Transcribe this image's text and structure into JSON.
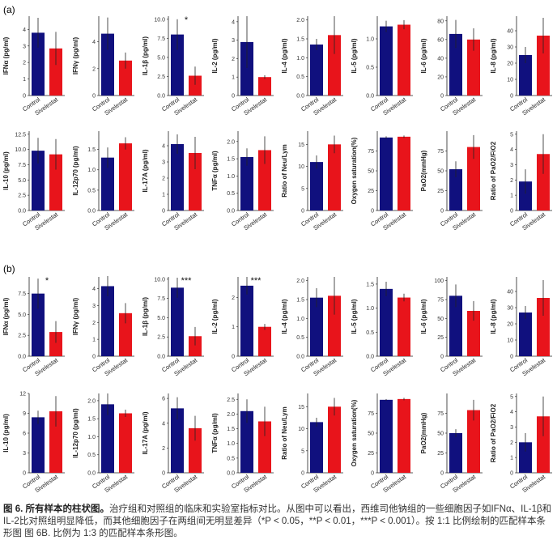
{
  "panel_labels": [
    "(a)",
    "(b)"
  ],
  "chart_data": [
    {
      "type": "bar",
      "ylabel": "IFNα (pg/ml)",
      "categories": [
        "Control",
        "Sivelestat"
      ],
      "values": [
        3.8,
        2.85
      ],
      "errors": [
        0.9,
        1.0
      ],
      "colors": [
        "#10107e",
        "#e8141b"
      ],
      "ylim": [
        0,
        4.8
      ],
      "yticks": [
        0,
        1,
        2,
        3,
        4
      ]
    },
    {
      "type": "bar",
      "ylabel": "IFNγ (pg/ml)",
      "categories": [
        "Control",
        "Sivelestat"
      ],
      "values": [
        4.6,
        2.6
      ],
      "errors": [
        1.2,
        0.6
      ],
      "colors": [
        "#10107e",
        "#e8141b"
      ],
      "ylim": [
        0,
        5.9
      ],
      "yticks": [
        0,
        2,
        4
      ]
    },
    {
      "type": "bar",
      "ylabel": "IL-1β (pg/ml)",
      "categories": [
        "Control",
        "Sivelestat"
      ],
      "values": [
        8.0,
        2.6
      ],
      "errors": [
        2.0,
        1.2
      ],
      "colors": [
        "#10107e",
        "#e8141b"
      ],
      "ylim": [
        0,
        10.4
      ],
      "yticks": [
        {
          "value": 0,
          "label": "0.0"
        },
        2.5,
        {
          "value": 5,
          "label": "5.0"
        },
        7.5,
        {
          "value": 10,
          "label": "10.0"
        }
      ],
      "annotation": "*"
    },
    {
      "type": "bar",
      "ylabel": "IL-2 (pg/ml)",
      "categories": [
        "Control",
        "Sivelestat"
      ],
      "values": [
        2.9,
        1.0
      ],
      "errors": [
        1.4,
        0.1
      ],
      "colors": [
        "#10107e",
        "#e8141b"
      ],
      "ylim": [
        0,
        4.3
      ],
      "yticks": [
        0,
        1,
        2,
        3,
        4
      ]
    },
    {
      "type": "bar",
      "ylabel": "IL-4 (pg/ml)",
      "categories": [
        "Control",
        "Sivelestat"
      ],
      "values": [
        1.35,
        1.6
      ],
      "errors": [
        0.15,
        0.5
      ],
      "colors": [
        "#10107e",
        "#e8141b"
      ],
      "ylim": [
        0,
        2.1
      ],
      "yticks": [
        {
          "value": 0,
          "label": "0.0"
        },
        0.5,
        {
          "value": 1,
          "label": "1.0"
        },
        1.5,
        {
          "value": 2,
          "label": "2.0"
        }
      ]
    },
    {
      "type": "bar",
      "ylabel": "IL-5 (pg/ml)",
      "categories": [
        "Control",
        "Sivelestat"
      ],
      "values": [
        1.22,
        1.25
      ],
      "errors": [
        0.1,
        0.08
      ],
      "colors": [
        "#10107e",
        "#e8141b"
      ],
      "ylim": [
        0,
        1.4
      ],
      "yticks": [
        {
          "value": 0,
          "label": "0.0"
        },
        0.5,
        {
          "value": 1,
          "label": "1.0"
        }
      ]
    },
    {
      "type": "bar",
      "ylabel": "IL-6 (pg/ml)",
      "categories": [
        "Control",
        "Sivelestat"
      ],
      "values": [
        66,
        60
      ],
      "errors": [
        15,
        12
      ],
      "colors": [
        "#10107e",
        "#e8141b"
      ],
      "ylim": [
        0,
        85
      ],
      "yticks": [
        0,
        20,
        40,
        60,
        80
      ]
    },
    {
      "type": "bar",
      "ylabel": "IL-8 (pg/ml)",
      "categories": [
        "Control",
        "Sivelestat"
      ],
      "values": [
        25,
        37
      ],
      "errors": [
        5,
        11
      ],
      "colors": [
        "#10107e",
        "#e8141b"
      ],
      "ylim": [
        0,
        49
      ],
      "yticks": [
        0,
        10,
        20,
        30,
        40
      ]
    },
    {
      "type": "bar",
      "ylabel": "IL-10 (pg/ml)",
      "categories": [
        "Control",
        "Sivelestat"
      ],
      "values": [
        9.8,
        9.2
      ],
      "errors": [
        2.1,
        2.5
      ],
      "colors": [
        "#10107e",
        "#e8141b"
      ],
      "ylim": [
        0,
        13
      ],
      "yticks": [
        {
          "value": 0,
          "label": "0.0"
        },
        2.5,
        {
          "value": 5,
          "label": "5.0"
        },
        7.5,
        {
          "value": 10,
          "label": "10.0"
        },
        12.5
      ]
    },
    {
      "type": "bar",
      "ylabel": "IL-12p70 (pg/ml)",
      "categories": [
        "Control",
        "Sivelestat"
      ],
      "values": [
        1.3,
        1.65
      ],
      "errors": [
        0.25,
        0.15
      ],
      "colors": [
        "#10107e",
        "#e8141b"
      ],
      "ylim": [
        0,
        1.95
      ],
      "yticks": [
        {
          "value": 0,
          "label": "0.0"
        },
        0.5,
        {
          "value": 1,
          "label": "1.0"
        },
        1.5
      ]
    },
    {
      "type": "bar",
      "ylabel": "IL-17A (pg/ml)",
      "categories": [
        "Control",
        "Sivelestat"
      ],
      "values": [
        4.1,
        3.55
      ],
      "errors": [
        0.6,
        1.0
      ],
      "colors": [
        "#10107e",
        "#e8141b"
      ],
      "ylim": [
        0,
        4.9
      ],
      "yticks": [
        0,
        1,
        2,
        3,
        4
      ]
    },
    {
      "type": "bar",
      "ylabel": "TNFα (pg/ml)",
      "categories": [
        "Control",
        "Sivelestat"
      ],
      "values": [
        1.55,
        1.75
      ],
      "errors": [
        0.25,
        0.4
      ],
      "colors": [
        "#10107e",
        "#e8141b"
      ],
      "ylim": [
        0,
        2.3
      ],
      "yticks": [
        {
          "value": 0,
          "label": "0.0"
        },
        0.5,
        {
          "value": 1,
          "label": "1.0"
        },
        1.5,
        {
          "value": 2,
          "label": "2.0"
        }
      ]
    },
    {
      "type": "bar",
      "ylabel": "Ratio of Neu/Lym",
      "categories": [
        "Control",
        "Sivelestat"
      ],
      "values": [
        11,
        15
      ],
      "errors": [
        1.5,
        2
      ],
      "colors": [
        "#10107e",
        "#e8141b"
      ],
      "ylim": [
        0,
        18
      ],
      "yticks": [
        0,
        5,
        10,
        15
      ]
    },
    {
      "type": "bar",
      "ylabel": "Oxygen saturation(%)",
      "categories": [
        "Control",
        "Sivelestat"
      ],
      "values": [
        92,
        93
      ],
      "errors": [
        1.5,
        1.5
      ],
      "colors": [
        "#10107e",
        "#e8141b"
      ],
      "ylim": [
        0,
        100
      ],
      "yticks": [
        0,
        25,
        50,
        75
      ]
    },
    {
      "type": "bar",
      "ylabel": "PaO2(mmHg)",
      "categories": [
        "Control",
        "Sivelestat"
      ],
      "values": [
        52,
        80
      ],
      "errors": [
        10,
        15
      ],
      "colors": [
        "#10107e",
        "#e8141b"
      ],
      "ylim": [
        0,
        100
      ],
      "yticks": [
        0,
        25,
        50,
        75
      ]
    },
    {
      "type": "bar",
      "ylabel": "Ratio of PaO2/FiO2",
      "categories": [
        "Control",
        "Sivelestat"
      ],
      "values": [
        1.9,
        3.7
      ],
      "errors": [
        0.8,
        1.3
      ],
      "colors": [
        "#10107e",
        "#e8141b"
      ],
      "ylim": [
        0,
        5.2
      ],
      "yticks": [
        0,
        1,
        2,
        3,
        4,
        5
      ]
    },
    {
      "type": "bar",
      "ylabel": "IFNα (pg/ml)",
      "categories": [
        "Control",
        "Sivelestat"
      ],
      "values": [
        7.5,
        2.9
      ],
      "errors": [
        1.8,
        1.3
      ],
      "colors": [
        "#10107e",
        "#e8141b"
      ],
      "ylim": [
        0,
        9.5
      ],
      "yticks": [
        {
          "value": 0,
          "label": "0.0"
        },
        2.5,
        {
          "value": 5,
          "label": "5.0"
        },
        7.5
      ],
      "annotation": "*"
    },
    {
      "type": "bar",
      "ylabel": "IFNγ (pg/ml)",
      "categories": [
        "Control",
        "Sivelestat"
      ],
      "values": [
        4.15,
        2.55
      ],
      "errors": [
        0.6,
        0.6
      ],
      "colors": [
        "#10107e",
        "#e8141b"
      ],
      "ylim": [
        0,
        4.7
      ],
      "yticks": [
        0,
        1,
        2,
        3,
        4
      ]
    },
    {
      "type": "bar",
      "ylabel": "IL-1β (pg/ml)",
      "categories": [
        "Control",
        "Sivelestat"
      ],
      "values": [
        8.9,
        2.6
      ],
      "errors": [
        1.3,
        1.2
      ],
      "colors": [
        "#10107e",
        "#e8141b"
      ],
      "ylim": [
        0,
        10.3
      ],
      "yticks": [
        {
          "value": 0,
          "label": "0.0"
        },
        2.5,
        {
          "value": 5,
          "label": "5.0"
        },
        7.5,
        {
          "value": 10,
          "label": "10.0"
        }
      ],
      "annotation": "***"
    },
    {
      "type": "bar",
      "ylabel": "IL-2 (pg/ml)",
      "categories": [
        "Control",
        "Sivelestat"
      ],
      "values": [
        2.4,
        1.0
      ],
      "errors": [
        0.3,
        0.1
      ],
      "colors": [
        "#10107e",
        "#e8141b"
      ],
      "ylim": [
        0,
        2.7
      ],
      "yticks": [
        0,
        1,
        2
      ],
      "annotation": "***"
    },
    {
      "type": "bar",
      "ylabel": "IL-4 (pg/ml)",
      "categories": [
        "Control",
        "Sivelestat"
      ],
      "values": [
        1.55,
        1.6
      ],
      "errors": [
        0.25,
        0.5
      ],
      "colors": [
        "#10107e",
        "#e8141b"
      ],
      "ylim": [
        0,
        2.1
      ],
      "yticks": [
        {
          "value": 0,
          "label": "0.0"
        },
        0.5,
        {
          "value": 1,
          "label": "1.0"
        },
        1.5,
        {
          "value": 2,
          "label": "2.0"
        }
      ]
    },
    {
      "type": "bar",
      "ylabel": "IL-5 (pg/ml)",
      "categories": [
        "Control",
        "Sivelestat"
      ],
      "values": [
        1.4,
        1.22
      ],
      "errors": [
        0.15,
        0.08
      ],
      "colors": [
        "#10107e",
        "#e8141b"
      ],
      "ylim": [
        0,
        1.65
      ],
      "yticks": [
        {
          "value": 0,
          "label": "0.0"
        },
        0.5,
        {
          "value": 1,
          "label": "1.0"
        },
        1.5
      ]
    },
    {
      "type": "bar",
      "ylabel": "IL-6 (pg/ml)",
      "categories": [
        "Control",
        "Sivelestat"
      ],
      "values": [
        80,
        60
      ],
      "errors": [
        15,
        13
      ],
      "colors": [
        "#10107e",
        "#e8141b"
      ],
      "ylim": [
        0,
        105
      ],
      "yticks": [
        0,
        25,
        50,
        75,
        100
      ]
    },
    {
      "type": "bar",
      "ylabel": "IL-8 (pg/ml)",
      "categories": [
        "Control",
        "Sivelestat"
      ],
      "values": [
        27,
        36
      ],
      "errors": [
        4,
        11
      ],
      "colors": [
        "#10107e",
        "#e8141b"
      ],
      "ylim": [
        0,
        49
      ],
      "yticks": [
        0,
        10,
        20,
        30,
        40
      ]
    },
    {
      "type": "bar",
      "ylabel": "IL-10 (pg/ml)",
      "categories": [
        "Control",
        "Sivelestat"
      ],
      "values": [
        8.4,
        9.3
      ],
      "errors": [
        1.0,
        2.3
      ],
      "colors": [
        "#10107e",
        "#e8141b"
      ],
      "ylim": [
        0,
        12
      ],
      "yticks": [
        0,
        3,
        6,
        9,
        12
      ]
    },
    {
      "type": "bar",
      "ylabel": "IL-12p70 (pg/ml)",
      "categories": [
        "Control",
        "Sivelestat"
      ],
      "values": [
        1.9,
        1.65
      ],
      "errors": [
        0.3,
        0.1
      ],
      "colors": [
        "#10107e",
        "#e8141b"
      ],
      "ylim": [
        0,
        2.2
      ],
      "yticks": [
        {
          "value": 0,
          "label": "0.0"
        },
        0.5,
        {
          "value": 1,
          "label": "1.0"
        },
        1.5,
        {
          "value": 2,
          "label": "2.0"
        }
      ]
    },
    {
      "type": "bar",
      "ylabel": "IL-17A (pg/ml)",
      "categories": [
        "Control",
        "Sivelestat"
      ],
      "values": [
        5.2,
        3.6
      ],
      "errors": [
        0.9,
        1.0
      ],
      "colors": [
        "#10107e",
        "#e8141b"
      ],
      "ylim": [
        0,
        6.4
      ],
      "yticks": [
        0,
        2,
        4,
        6
      ]
    },
    {
      "type": "bar",
      "ylabel": "TNFα (pg/ml)",
      "categories": [
        "Control",
        "Sivelestat"
      ],
      "values": [
        2.1,
        1.75
      ],
      "errors": [
        0.4,
        0.5
      ],
      "colors": [
        "#10107e",
        "#e8141b"
      ],
      "ylim": [
        0,
        2.7
      ],
      "yticks": [
        {
          "value": 0,
          "label": "0.0"
        },
        0.5,
        {
          "value": 1,
          "label": "1.0"
        },
        1.5,
        {
          "value": 2,
          "label": "2.0"
        },
        2.5
      ]
    },
    {
      "type": "bar",
      "ylabel": "Ratio of Neu/Lym",
      "categories": [
        "Control",
        "Sivelestat"
      ],
      "values": [
        11.5,
        15
      ],
      "errors": [
        1,
        2
      ],
      "colors": [
        "#10107e",
        "#e8141b"
      ],
      "ylim": [
        0,
        18
      ],
      "yticks": [
        0,
        5,
        10,
        15
      ]
    },
    {
      "type": "bar",
      "ylabel": "Oxygen saturation(%)",
      "categories": [
        "Control",
        "Sivelestat"
      ],
      "values": [
        92,
        93
      ],
      "errors": [
        1,
        1.5
      ],
      "colors": [
        "#10107e",
        "#e8141b"
      ],
      "ylim": [
        0,
        100
      ],
      "yticks": [
        0,
        25,
        50,
        75
      ]
    },
    {
      "type": "bar",
      "ylabel": "PaO2(mmHg)",
      "categories": [
        "Control",
        "Sivelestat"
      ],
      "values": [
        50,
        79
      ],
      "errors": [
        5,
        13
      ],
      "colors": [
        "#10107e",
        "#e8141b"
      ],
      "ylim": [
        0,
        100
      ],
      "yticks": [
        0,
        25,
        50,
        75
      ]
    },
    {
      "type": "bar",
      "ylabel": "Ratio of PaO2/FiO2",
      "categories": [
        "Control",
        "Sivelestat"
      ],
      "values": [
        2.0,
        3.7
      ],
      "errors": [
        0.6,
        1.3
      ],
      "colors": [
        "#10107e",
        "#e8141b"
      ],
      "ylim": [
        0,
        5.2
      ],
      "yticks": [
        0,
        1,
        2,
        3,
        4,
        5
      ]
    }
  ],
  "caption": {
    "label": "图 6. 所有样本的柱状图。",
    "text": "治疗组和对照组的临床和实验室指标对比。从图中可以看出，西维司他钠组的一些细胞因子如IFNα、IL-1β和IL-2比对照组明显降低，而其他细胞因子在两组间无明显差异（*P < 0.05，**P < 0.01，***P < 0.001）。按 1:1 比例绘制的匹配样本条形图 图 6B. 比例为 1:3 的匹配样本条形图。"
  }
}
